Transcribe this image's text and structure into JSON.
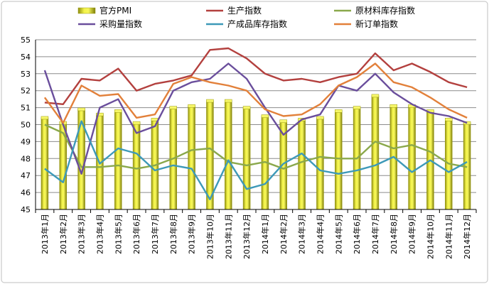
{
  "chart_data": {
    "type": "bar",
    "title": "",
    "xlabel": "",
    "ylabel": "",
    "ylim": [
      45,
      55
    ],
    "ytick_step": 1,
    "grid": true,
    "legend_position": "top",
    "categories": [
      "2013年1月",
      "2013年2月",
      "2013年3月",
      "2013年4月",
      "2013年5月",
      "2013年6月",
      "2013年7月",
      "2013年8月",
      "2013年9月",
      "2013年10月",
      "2013年11月",
      "2013年12月",
      "2014年1月",
      "2014年2月",
      "2014年3月",
      "2014年4月",
      "2014年5月",
      "2014年6月",
      "2014年7月",
      "2014年8月",
      "2014年9月",
      "2014年10月",
      "2014年11月",
      "2014年12月"
    ],
    "series": [
      {
        "name": "官方PMI",
        "type": "bar",
        "color": "#d6d61f",
        "values": [
          50.4,
          50.1,
          50.9,
          50.6,
          50.8,
          50.1,
          50.3,
          51.0,
          51.1,
          51.4,
          51.4,
          51.0,
          50.5,
          50.2,
          50.3,
          50.4,
          50.8,
          51.0,
          51.7,
          51.1,
          51.1,
          50.8,
          50.3,
          50.1
        ]
      },
      {
        "name": "生产指数",
        "type": "line",
        "color": "#b3403e",
        "values": [
          51.3,
          51.2,
          52.7,
          52.6,
          53.3,
          52.0,
          52.4,
          52.6,
          52.9,
          54.4,
          54.5,
          53.9,
          53.0,
          52.6,
          52.7,
          52.5,
          52.8,
          53.0,
          54.2,
          53.2,
          53.6,
          53.1,
          52.5,
          52.2
        ]
      },
      {
        "name": "原材料库存指数",
        "type": "line",
        "color": "#8aa84b",
        "values": [
          50.0,
          49.5,
          47.5,
          47.5,
          47.6,
          47.4,
          47.6,
          48.0,
          48.5,
          48.6,
          47.8,
          47.6,
          47.8,
          47.4,
          47.8,
          48.1,
          48.0,
          48.0,
          49.0,
          48.6,
          48.8,
          48.4,
          47.7,
          47.5
        ]
      },
      {
        "name": "采购量指数",
        "type": "line",
        "color": "#6a4e9c",
        "values": [
          53.2,
          50.0,
          47.1,
          51.0,
          51.5,
          49.5,
          49.9,
          52.0,
          52.5,
          52.7,
          53.6,
          52.7,
          51.0,
          49.4,
          50.3,
          50.6,
          52.3,
          52.0,
          53.0,
          51.9,
          51.2,
          50.7,
          50.5,
          50.1
        ]
      },
      {
        "name": "产成品库存指数",
        "type": "line",
        "color": "#3d99b8",
        "values": [
          47.4,
          46.6,
          50.2,
          47.7,
          48.6,
          48.3,
          47.3,
          47.6,
          47.4,
          45.6,
          47.9,
          46.2,
          46.5,
          47.7,
          48.3,
          47.3,
          47.1,
          47.3,
          47.6,
          48.1,
          47.2,
          47.9,
          47.2,
          47.8
        ]
      },
      {
        "name": "新订单指数",
        "type": "line",
        "color": "#e2803a",
        "values": [
          51.6,
          50.1,
          52.3,
          51.7,
          51.8,
          50.4,
          50.6,
          52.4,
          52.8,
          52.5,
          52.3,
          52.0,
          50.9,
          50.5,
          50.6,
          51.2,
          52.3,
          52.8,
          53.6,
          52.5,
          52.2,
          51.6,
          50.9,
          50.4
        ]
      }
    ]
  }
}
